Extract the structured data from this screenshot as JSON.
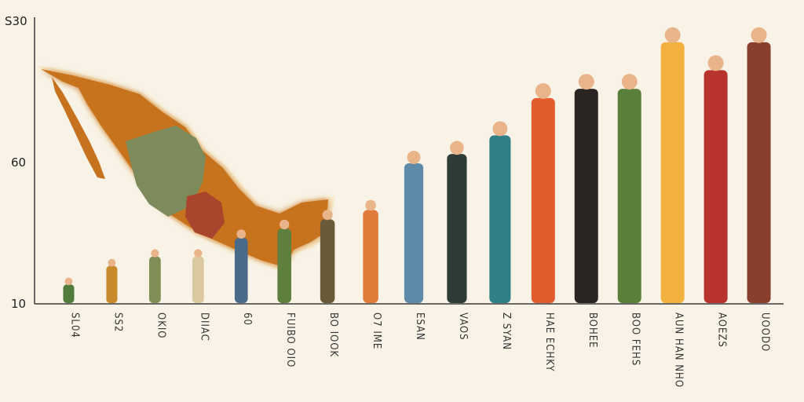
{
  "chart_data": {
    "type": "bar",
    "title": "",
    "xlabel": "",
    "ylabel": "",
    "y_tick_labels": [
      "S30",
      "60",
      "10"
    ],
    "categories": [
      "SL04",
      "SS2",
      "OKIO",
      "DIIAC",
      "60",
      "FUIBO OIO",
      "BO IOOK",
      "O7 IME",
      "ESAN",
      "VAOS",
      "Z SYAN",
      "HAE ECHKY",
      "BOHEE",
      "BOO FEHS",
      "AUN HAN NHO",
      "AOEZS",
      "UOODO"
    ],
    "values": [
      2,
      4,
      5,
      5,
      7,
      8,
      9,
      10,
      15,
      16,
      18,
      22,
      23,
      23,
      28,
      25,
      28
    ],
    "colors": [
      "#4f7c3a",
      "#c98a2b",
      "#7f8f55",
      "#d9c8a0",
      "#4a6a8a",
      "#5f7f3f",
      "#6b5a3a",
      "#e07b39",
      "#5c8aa8",
      "#2f3b36",
      "#2f7f86",
      "#e25c2e",
      "#2a2522",
      "#5a7f3a",
      "#f2b13f",
      "#b8322e",
      "#8a3e2c"
    ],
    "ylim": [
      0,
      30
    ],
    "grid": false,
    "legend": "none",
    "map_color": "#c7721f",
    "map_inner_color": "#7d8a5b",
    "map_accent_color": "#a9442d"
  }
}
